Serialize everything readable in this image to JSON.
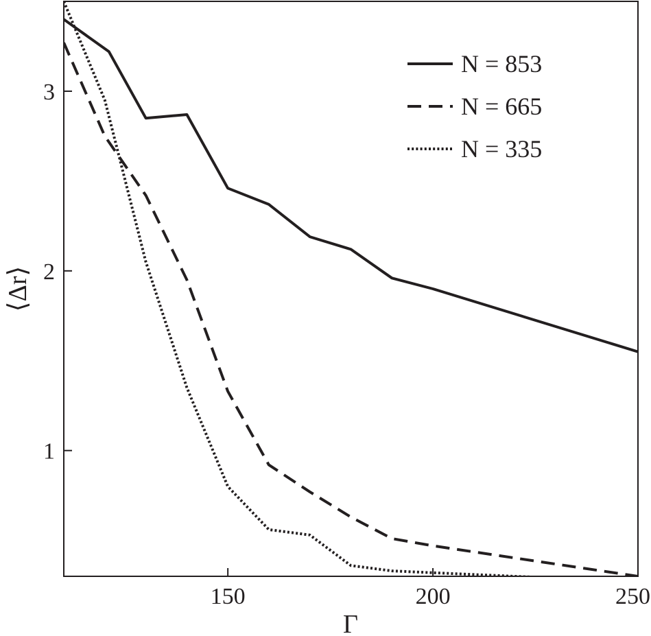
{
  "chart_data": {
    "type": "line",
    "title": "",
    "xlabel": "Γ",
    "ylabel": "⟨Δr⟩",
    "xlim": [
      110,
      250
    ],
    "ylim": [
      0.3,
      3.5
    ],
    "xticks": [
      150,
      200,
      250
    ],
    "yticks": [
      1,
      2,
      3
    ],
    "legend_position": "top-right",
    "grid": false,
    "colors": {
      "line": "#231f20",
      "frame": "#231f20"
    },
    "series": [
      {
        "name": "N = 853",
        "style": "solid",
        "x": [
          110,
          121,
          130,
          140,
          150,
          160,
          170,
          180,
          190,
          200,
          250
        ],
        "y": [
          3.4,
          3.22,
          2.85,
          2.87,
          2.46,
          2.37,
          2.19,
          2.12,
          1.96,
          1.9,
          1.55
        ]
      },
      {
        "name": "N = 665",
        "style": "dashed",
        "x": [
          110,
          120,
          130,
          140,
          150,
          160,
          170,
          180,
          190,
          200,
          250
        ],
        "y": [
          3.27,
          2.75,
          2.42,
          1.95,
          1.33,
          0.92,
          0.77,
          0.63,
          0.51,
          0.47,
          0.3
        ]
      },
      {
        "name": "N = 335",
        "style": "dotted",
        "x": [
          110,
          120,
          130,
          140,
          150,
          160,
          170,
          180,
          190,
          200,
          230
        ],
        "y": [
          3.5,
          2.95,
          2.05,
          1.35,
          0.8,
          0.56,
          0.53,
          0.36,
          0.33,
          0.32,
          0.29
        ]
      }
    ]
  }
}
